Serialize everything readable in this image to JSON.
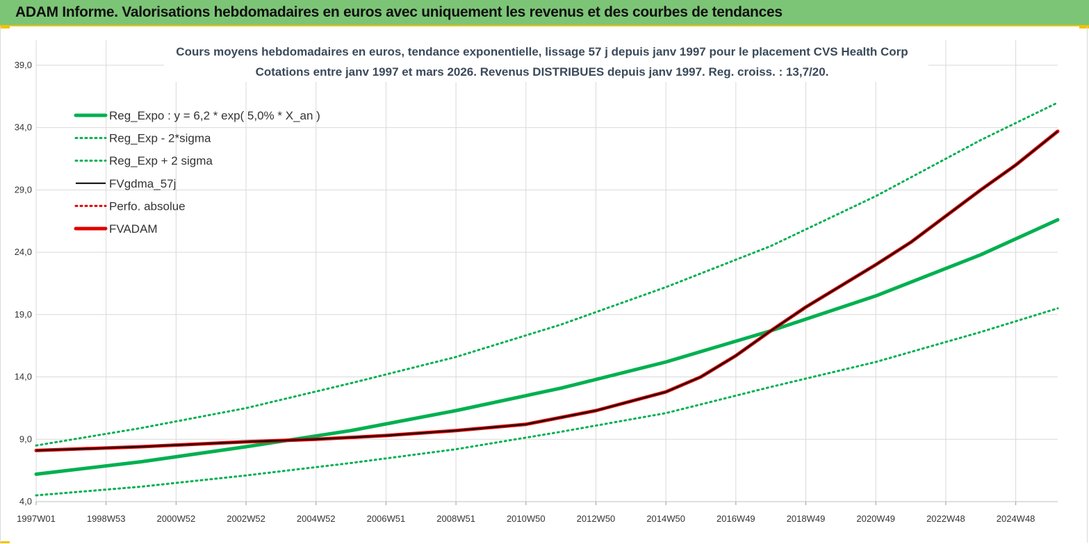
{
  "header": {
    "title": "ADAM Informe. Valorisations hebdomadaires en euros avec uniquement les revenus et des courbes de tendances"
  },
  "colors": {
    "header_bg": "#7cc576",
    "accent": "#f2c200",
    "green": "#00b050",
    "red": "#e00000",
    "black": "#000000"
  },
  "chart_data": {
    "type": "line",
    "title": "Cours moyens hebdomadaires en euros, tendance exponentielle, lissage 57 j depuis janv 1997 pour le placement CVS Health Corp",
    "subtitle": "Cotations entre janv 1997 et mars 2026. Revenus DISTRIBUES depuis janv 1997. Reg. croiss. : 13,7/20.",
    "xlabel": "",
    "ylabel": "",
    "x_range": [
      1997.0,
      2026.2
    ],
    "ylim": [
      4.0,
      41.0
    ],
    "y_ticks": [
      "4,0",
      "9,0",
      "14,0",
      "19,0",
      "24,0",
      "29,0",
      "34,0",
      "39,0"
    ],
    "x_ticks": [
      {
        "x": 1997.0,
        "label": "1997W01"
      },
      {
        "x": 1999.0,
        "label": "1998W53"
      },
      {
        "x": 2001.0,
        "label": "2000W52"
      },
      {
        "x": 2003.0,
        "label": "2002W52"
      },
      {
        "x": 2005.0,
        "label": "2004W52"
      },
      {
        "x": 2007.0,
        "label": "2006W51"
      },
      {
        "x": 2009.0,
        "label": "2008W51"
      },
      {
        "x": 2011.0,
        "label": "2010W50"
      },
      {
        "x": 2013.0,
        "label": "2012W50"
      },
      {
        "x": 2015.0,
        "label": "2014W50"
      },
      {
        "x": 2017.0,
        "label": "2016W49"
      },
      {
        "x": 2019.0,
        "label": "2018W49"
      },
      {
        "x": 2021.0,
        "label": "2020W49"
      },
      {
        "x": 2023.0,
        "label": "2022W48"
      },
      {
        "x": 2025.0,
        "label": "2024W48"
      }
    ],
    "grid": true,
    "legend_position": "top-left",
    "series": [
      {
        "name": "Reg_Expo : y = 6,2 * exp( 5,0% *  X_an )",
        "style": "solid-thick",
        "color": "#00b050",
        "x": [
          1997.0,
          2000.0,
          2003.0,
          2006.0,
          2009.0,
          2012.0,
          2015.0,
          2018.0,
          2021.0,
          2024.0,
          2026.2
        ],
        "y": [
          6.2,
          7.2,
          8.4,
          9.7,
          11.3,
          13.1,
          15.2,
          17.7,
          20.5,
          23.8,
          26.6
        ]
      },
      {
        "name": "Reg_Exp - 2*sigma",
        "style": "dotted",
        "color": "#00b050",
        "x": [
          1997.0,
          2000.0,
          2003.0,
          2006.0,
          2009.0,
          2012.0,
          2015.0,
          2018.0,
          2021.0,
          2024.0,
          2026.2
        ],
        "y": [
          4.5,
          5.2,
          6.1,
          7.1,
          8.2,
          9.6,
          11.1,
          13.2,
          15.2,
          17.6,
          19.5
        ]
      },
      {
        "name": "Reg_Exp + 2 sigma",
        "style": "dotted",
        "color": "#00b050",
        "x": [
          1997.0,
          2000.0,
          2003.0,
          2006.0,
          2009.0,
          2012.0,
          2015.0,
          2018.0,
          2021.0,
          2024.0,
          2026.2
        ],
        "y": [
          8.5,
          9.9,
          11.5,
          13.5,
          15.6,
          18.2,
          21.2,
          24.5,
          28.5,
          33.0,
          36.0
        ]
      },
      {
        "name": "FVgdma_57j",
        "style": "solid",
        "color": "#000000",
        "x": [
          1997.0,
          2000.0,
          2003.0,
          2005.0,
          2007.0,
          2009.0,
          2011.0,
          2013.0,
          2015.0,
          2016.0,
          2017.0,
          2018.0,
          2019.0,
          2020.0,
          2021.0,
          2022.0,
          2023.0,
          2024.0,
          2025.0,
          2026.2
        ],
        "y": [
          8.1,
          8.4,
          8.8,
          9.0,
          9.3,
          9.7,
          10.2,
          11.3,
          12.8,
          14.0,
          15.7,
          17.7,
          19.6,
          21.3,
          23.0,
          24.8,
          26.9,
          29.0,
          31.0,
          33.7
        ]
      },
      {
        "name": "Perfo. absolue",
        "style": "dotted",
        "color": "#e00000",
        "x": [],
        "y": []
      },
      {
        "name": "FVADAM",
        "style": "solid-thick",
        "color": "#e00000",
        "x": [
          1997.0,
          2000.0,
          2003.0,
          2005.0,
          2007.0,
          2009.0,
          2011.0,
          2013.0,
          2015.0,
          2016.0,
          2017.0,
          2018.0,
          2019.0,
          2020.0,
          2021.0,
          2022.0,
          2023.0,
          2024.0,
          2025.0,
          2026.2
        ],
        "y": [
          8.1,
          8.4,
          8.8,
          9.0,
          9.3,
          9.7,
          10.2,
          11.3,
          12.8,
          14.0,
          15.7,
          17.7,
          19.6,
          21.3,
          23.0,
          24.8,
          26.9,
          29.0,
          31.0,
          33.7
        ]
      }
    ]
  }
}
